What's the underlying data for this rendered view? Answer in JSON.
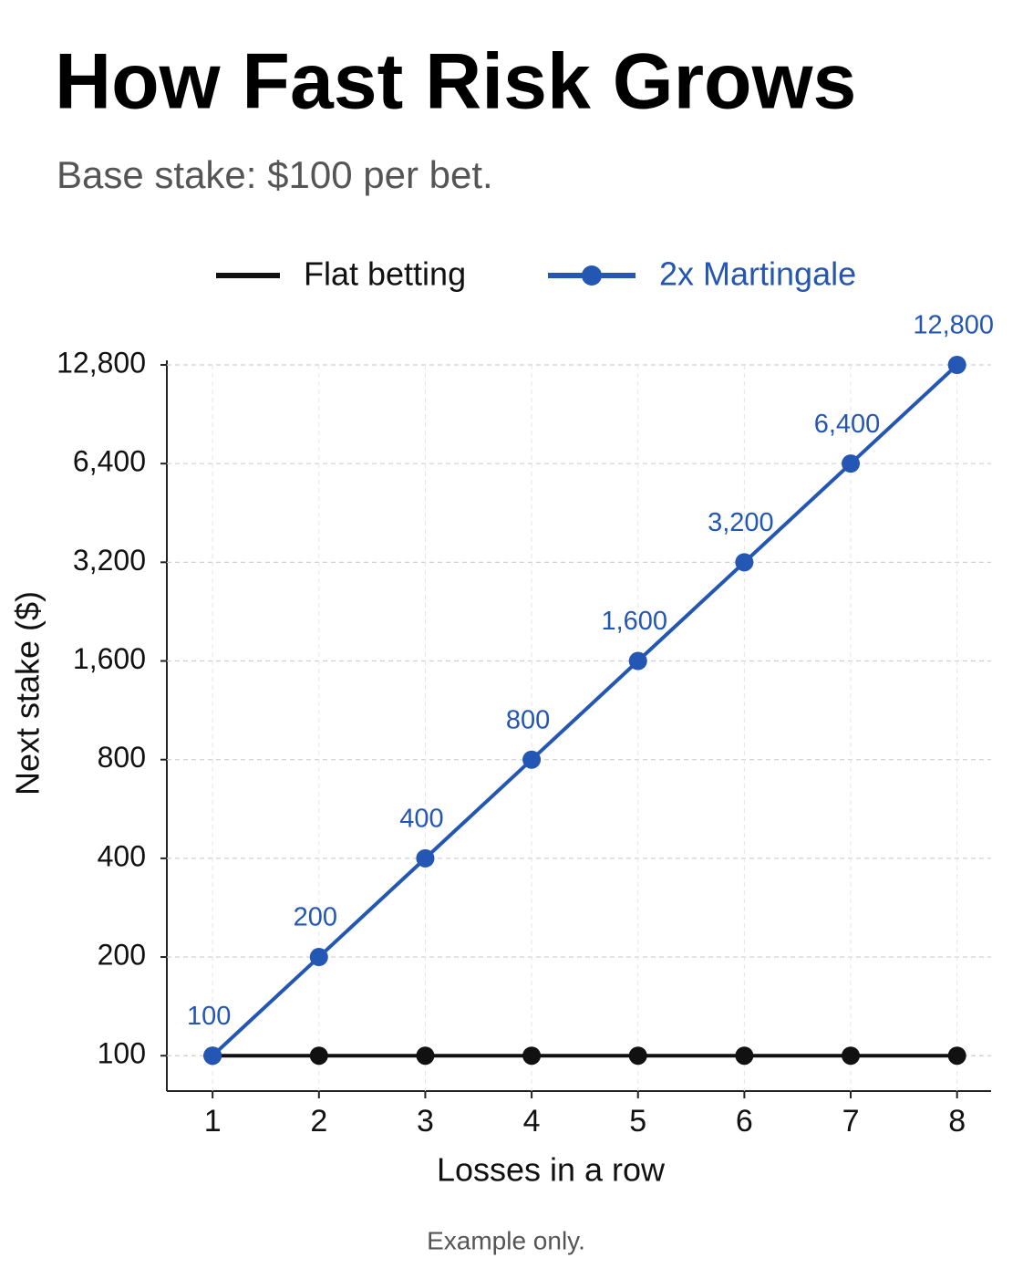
{
  "chart_data": {
    "type": "line",
    "title": "How Fast Risk Grows",
    "subtitle": "Base stake: $100 per bet.",
    "x_label": "Losses in a row",
    "y_label": "Next stake ($)",
    "footnote": "Example only.",
    "x": [
      1,
      2,
      3,
      4,
      5,
      6,
      7,
      8
    ],
    "xlim": [
      0.57,
      8.32
    ],
    "xticks": [
      1,
      2,
      3,
      4,
      5,
      6,
      7,
      8
    ],
    "ylim": [
      78,
      12800
    ],
    "yscale": "log",
    "yticks": [
      100,
      200,
      400,
      800,
      {
        "value": 1600,
        "label": "1,600"
      },
      {
        "value": 3200,
        "label": "3,200"
      },
      {
        "value": 6400,
        "label": "6,400"
      },
      {
        "value": 12800,
        "label": "12,800"
      }
    ],
    "grid": true,
    "legend": "top",
    "series": [
      {
        "name": "Flat betting",
        "color": "#111111",
        "values": [
          100,
          100,
          100,
          100,
          100,
          100,
          100,
          100
        ],
        "legend_marker": false
      },
      {
        "name": "2x Martingale",
        "color": "#2456b3",
        "values": [
          100,
          200,
          400,
          800,
          1600,
          3200,
          6400,
          12800
        ],
        "value_labels": [
          "100",
          "200",
          "400",
          "800",
          "1,600",
          "3,200",
          "6,400",
          "12,800"
        ],
        "legend_marker": true
      }
    ]
  }
}
